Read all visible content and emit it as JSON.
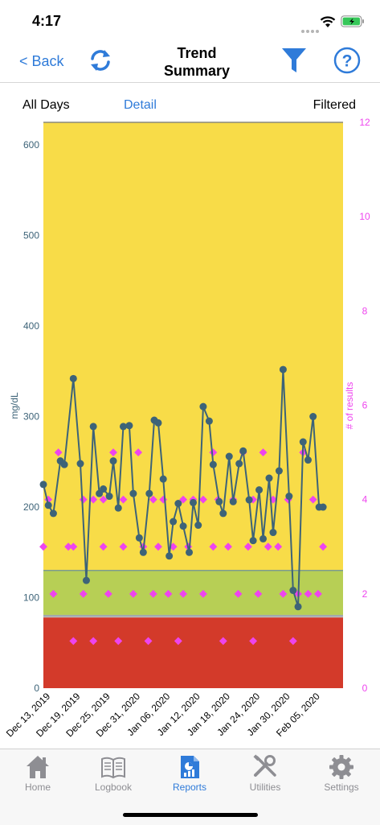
{
  "status_bar": {
    "time": "4:17"
  },
  "nav": {
    "back_label": "< Back",
    "title_line1": "Trend",
    "title_line2": "Summary"
  },
  "tabs": {
    "all_days": "All Days",
    "detail": "Detail",
    "filtered": "Filtered"
  },
  "colors": {
    "accent": "#2f7bd9",
    "high_zone": "#f8dc48",
    "target_zone": "#b7cf55",
    "low_zone": "#d33a2a",
    "glucose_line": "#3d6378",
    "result_count": "#ee44ee",
    "count_axis": "#ee44ee",
    "glucose_axis": "#3d6378"
  },
  "tab_bar": {
    "items": [
      {
        "label": "Home",
        "icon": "house-icon",
        "active": false
      },
      {
        "label": "Logbook",
        "icon": "book-icon",
        "active": false
      },
      {
        "label": "Reports",
        "icon": "report-icon",
        "active": true
      },
      {
        "label": "Utilities",
        "icon": "tools-icon",
        "active": false
      },
      {
        "label": "Settings",
        "icon": "gear-icon",
        "active": false
      }
    ]
  },
  "chart_data": {
    "type": "line",
    "ylabel": "mg/dL",
    "y2label": "# of results",
    "ylim": [
      0,
      625
    ],
    "y2lim": [
      0,
      12
    ],
    "yticks": [
      0,
      100,
      200,
      300,
      400,
      500,
      600
    ],
    "y2ticks": [
      0,
      2,
      4,
      6,
      8,
      10,
      12
    ],
    "xlim": [
      "Dec 13, 2019",
      "Feb 07, 2020"
    ],
    "xtick_labels": [
      "Dec 13, 2019",
      "Dec 19, 2019",
      "Dec 25, 2019",
      "Dec 31, 2020",
      "Jan 06, 2020",
      "Jan 12, 2020",
      "Jan 18, 2020",
      "Jan 24, 2020",
      "Jan 30, 2020",
      "Feb 05, 2020"
    ],
    "zones": [
      {
        "from": 0,
        "to": 78,
        "color": "#d33a2a"
      },
      {
        "from": 81,
        "to": 130,
        "color": "#b7cf55"
      },
      {
        "from": 130,
        "to": 625,
        "color": "#f8dc48"
      }
    ],
    "series": [
      {
        "kind": "line",
        "axis": "left",
        "day": [
          0,
          0.5,
          1,
          1.7,
          2.1,
          3,
          3.7,
          4.3,
          5,
          5.6,
          6,
          6.6,
          7,
          7.5,
          8,
          8.6,
          9,
          9.6,
          10,
          10.6,
          11.1,
          11.5,
          12,
          12.6,
          13,
          13.5,
          14,
          14.6,
          15,
          15.5,
          16,
          16.6,
          17,
          17.6,
          18,
          18.6,
          19,
          19.6,
          20,
          20.6,
          21,
          21.6,
          22,
          22.6,
          23,
          23.6,
          24,
          24.6,
          25,
          25.5,
          26,
          26.5,
          27,
          27.6,
          28
        ],
        "value": [
          225,
          202,
          193,
          251,
          247,
          342,
          248,
          119,
          289,
          215,
          220,
          212,
          251,
          199,
          289,
          290,
          215,
          166,
          150,
          215,
          296,
          293,
          231,
          146,
          184,
          204,
          179,
          150,
          205,
          180,
          311,
          295,
          247,
          206,
          193,
          256,
          206,
          248,
          262,
          208,
          163,
          219,
          165,
          232,
          172,
          240,
          352,
          212,
          108,
          90,
          272,
          252,
          300,
          200,
          200
        ]
      },
      {
        "kind": "points",
        "axis": "right",
        "day": [
          0,
          0.5,
          1,
          1.5,
          2.5,
          3,
          3,
          4,
          4,
          5,
          5,
          6,
          6,
          6.5,
          7,
          7.5,
          8,
          8,
          9,
          9.5,
          10,
          10.5,
          11,
          11,
          11.5,
          12,
          12.5,
          13,
          13.5,
          14,
          14,
          14.5,
          15,
          16,
          16,
          17,
          17,
          17.5,
          18,
          18.5,
          19,
          19.5,
          20,
          20.5,
          21,
          21,
          21.5,
          22,
          22.5,
          23,
          23.5,
          24,
          24.5,
          25,
          25.5,
          26,
          26.5,
          27,
          27.5,
          28
        ],
        "value": [
          3,
          4,
          2,
          5,
          3,
          1,
          3,
          4,
          2,
          4,
          1,
          3,
          4,
          2,
          5,
          1,
          3,
          4,
          2,
          5,
          3,
          1,
          4,
          2,
          3,
          4,
          2,
          3,
          1,
          4,
          2,
          3,
          4,
          2,
          4,
          3,
          5,
          4,
          1,
          3,
          4,
          2,
          5,
          3,
          4,
          1,
          2,
          5,
          3,
          4,
          3,
          2,
          4,
          1,
          2,
          5,
          2,
          4,
          2,
          3
        ]
      }
    ]
  }
}
